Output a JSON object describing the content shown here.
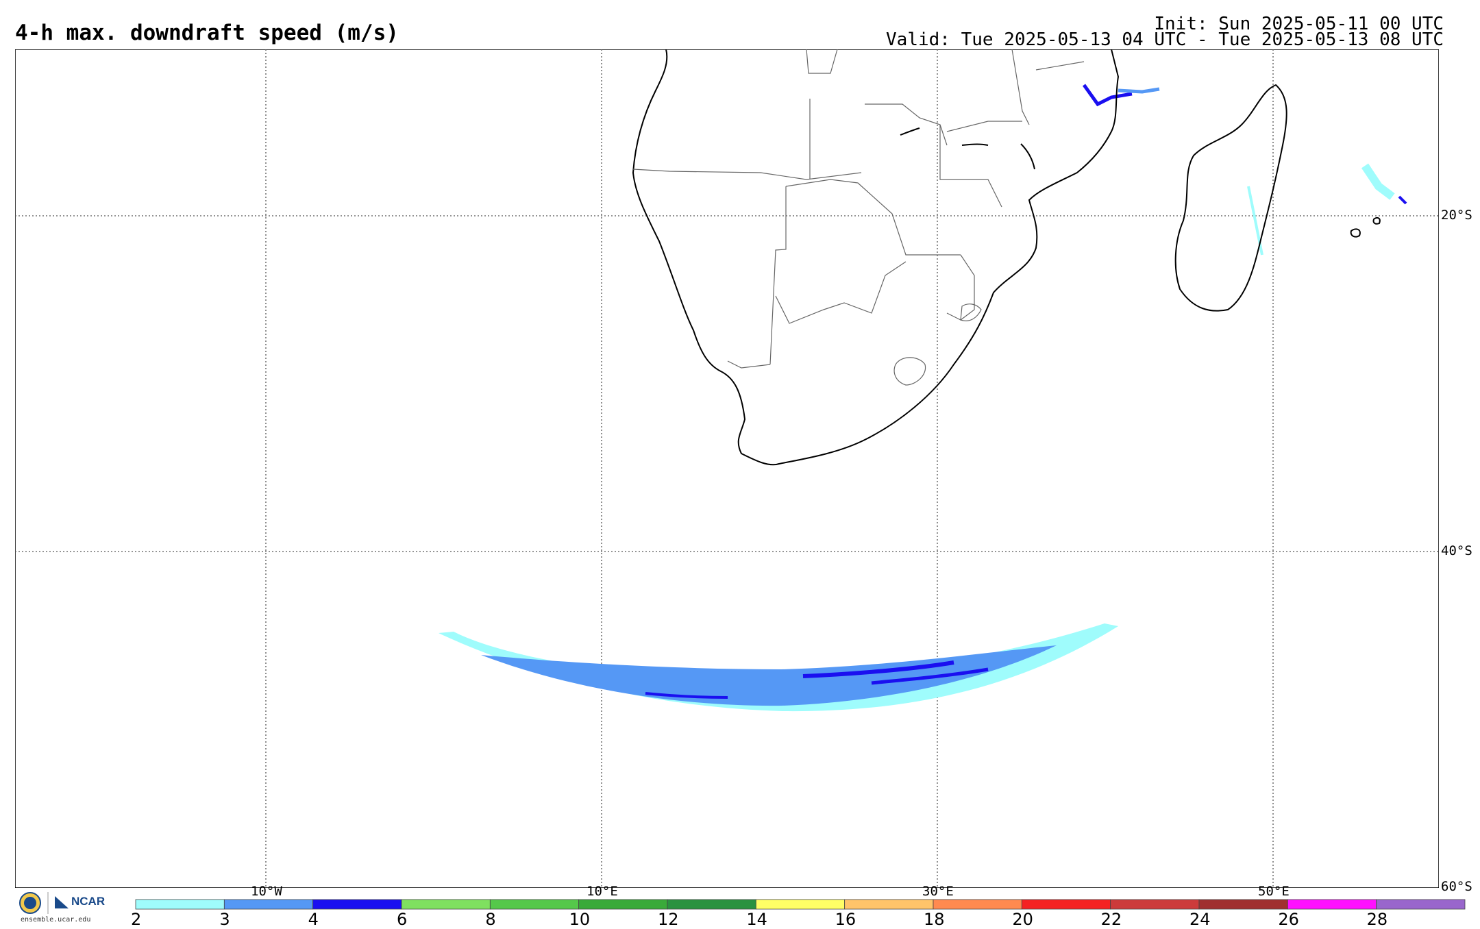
{
  "title": "4-h max. downdraft speed (m/s)",
  "init": "Init: Sun 2025-05-11 00 UTC",
  "valid": "Valid: Tue 2025-05-13 04 UTC - Tue 2025-05-13 08 UTC",
  "lat_labels": [
    "20°S",
    "40°S",
    "60°S"
  ],
  "lon_labels": [
    "10°W",
    "10°E",
    "30°E",
    "50°E"
  ],
  "colorbar": {
    "levels": [
      2,
      3,
      4,
      6,
      8,
      10,
      12,
      14,
      16,
      18,
      20,
      22,
      24,
      26,
      28
    ],
    "tick_labels": [
      "2",
      "3",
      "4",
      "6",
      "8",
      "10",
      "12",
      "14",
      "16",
      "18",
      "20",
      "22",
      "24",
      "26",
      "28"
    ],
    "colors": [
      "#9ffcfc",
      "#5598f5",
      "#1a0ff0",
      "#7fe060",
      "#55c84a",
      "#3aaa3a",
      "#2a9240",
      "#ffff66",
      "#ffc46a",
      "#ff8a50",
      "#f52222",
      "#cc3b3b",
      "#a03030",
      "#ff10ff",
      "#9966cc"
    ]
  },
  "logo": {
    "org": "NCAR",
    "url": "ensemble.ucar.edu"
  }
}
